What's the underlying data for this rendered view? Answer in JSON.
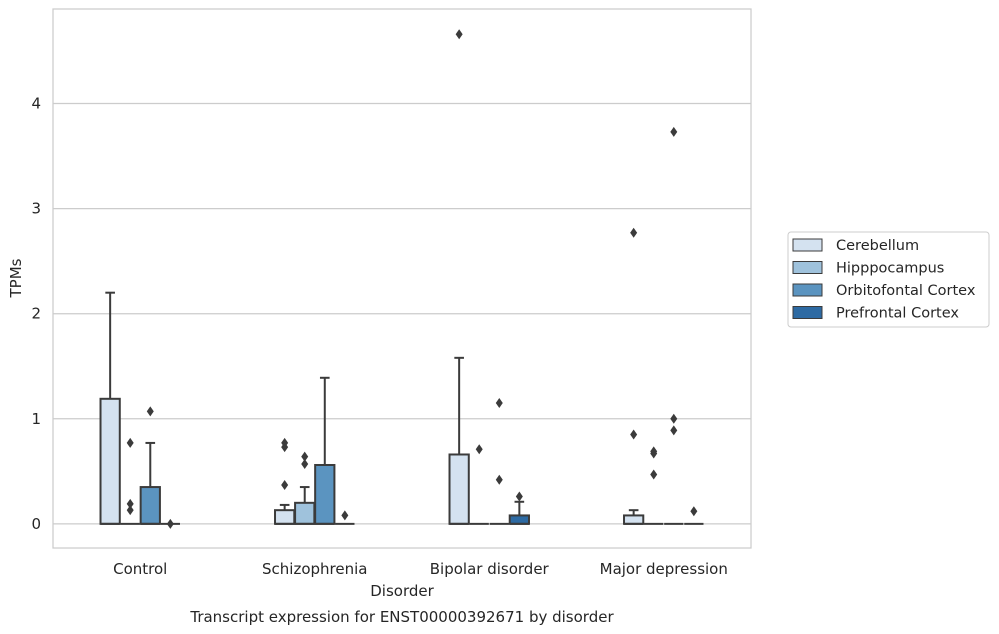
{
  "chart_data": {
    "type": "boxplot",
    "title": "Transcript expression for ENST00000392671 by disorder",
    "xlabel": "Disorder",
    "ylabel": "TPMs",
    "ylim": [
      -0.23,
      4.9
    ],
    "yticks": [
      0,
      1,
      2,
      3,
      4
    ],
    "grid": "horizontal",
    "legend_position": "right",
    "categories": [
      "Control",
      "Schizophrenia",
      "Bipolar disorder",
      "Major depression"
    ],
    "series": [
      {
        "name": "Cerebellum",
        "color": "#d4e2f0",
        "boxes": [
          {
            "q1": 0,
            "median": 0,
            "q3": 1.19,
            "whisker_low": 0,
            "whisker_high": 2.2,
            "fliers": []
          },
          {
            "q1": 0,
            "median": 0,
            "q3": 0.13,
            "whisker_low": 0,
            "whisker_high": 0.18,
            "fliers": [
              0.37,
              0.73,
              0.77
            ]
          },
          {
            "q1": 0,
            "median": 0,
            "q3": 0.66,
            "whisker_low": 0,
            "whisker_high": 1.58,
            "fliers": [
              4.66
            ]
          },
          {
            "q1": 0,
            "median": 0,
            "q3": 0.08,
            "whisker_low": 0,
            "whisker_high": 0.13,
            "fliers": [
              0.85,
              2.77
            ]
          }
        ]
      },
      {
        "name": "Hipppocampus",
        "color": "#9fc2dc",
        "boxes": [
          {
            "q1": 0,
            "median": 0,
            "q3": 0,
            "whisker_low": 0,
            "whisker_high": 0,
            "fliers": [
              0.13,
              0.19,
              0.77
            ]
          },
          {
            "q1": 0,
            "median": 0,
            "q3": 0.2,
            "whisker_low": 0,
            "whisker_high": 0.35,
            "fliers": [
              0.57,
              0.64
            ]
          },
          {
            "q1": 0,
            "median": 0,
            "q3": 0,
            "whisker_low": 0,
            "whisker_high": 0,
            "fliers": [
              0.71
            ]
          },
          {
            "q1": 0,
            "median": 0,
            "q3": 0,
            "whisker_low": 0,
            "whisker_high": 0,
            "fliers": [
              0.47,
              0.67,
              0.69
            ]
          }
        ]
      },
      {
        "name": "Orbitofontal Cortex",
        "color": "#5b94c0",
        "boxes": [
          {
            "q1": 0,
            "median": 0,
            "q3": 0.35,
            "whisker_low": 0,
            "whisker_high": 0.77,
            "fliers": [
              1.07
            ]
          },
          {
            "q1": 0,
            "median": 0,
            "q3": 0.56,
            "whisker_low": 0,
            "whisker_high": 1.39,
            "fliers": []
          },
          {
            "q1": 0,
            "median": 0,
            "q3": 0,
            "whisker_low": 0,
            "whisker_high": 0,
            "fliers": [
              0.42,
              1.15
            ]
          },
          {
            "q1": 0,
            "median": 0,
            "q3": 0,
            "whisker_low": 0,
            "whisker_high": 0,
            "fliers": [
              0.89,
              1.0,
              3.73
            ]
          }
        ]
      },
      {
        "name": "Prefrontal Cortex",
        "color": "#2d6aa3",
        "boxes": [
          {
            "q1": 0,
            "median": 0,
            "q3": 0,
            "whisker_low": 0,
            "whisker_high": 0,
            "fliers": [
              0.0
            ]
          },
          {
            "q1": 0,
            "median": 0,
            "q3": 0,
            "whisker_low": 0,
            "whisker_high": 0,
            "fliers": [
              0.08
            ]
          },
          {
            "q1": 0,
            "median": 0,
            "q3": 0.08,
            "whisker_low": 0,
            "whisker_high": 0.21,
            "fliers": [
              0.26
            ]
          },
          {
            "q1": 0,
            "median": 0,
            "q3": 0,
            "whisker_low": 0,
            "whisker_high": 0,
            "fliers": [
              0.12
            ]
          }
        ]
      }
    ]
  }
}
